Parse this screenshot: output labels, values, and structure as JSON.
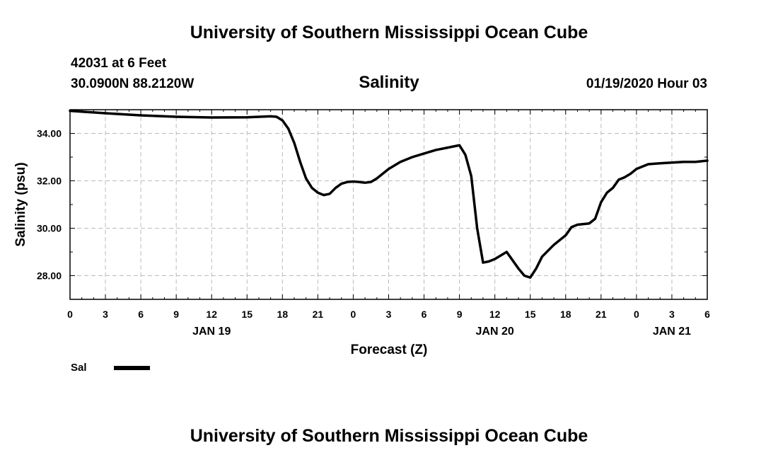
{
  "header": {
    "title": "University of Southern Mississippi Ocean Cube",
    "station": "42031 at 6 Feet",
    "location": "30.0900N 88.2120W",
    "subtitle": "Salinity",
    "timestamp": "01/19/2020 Hour 03"
  },
  "footer": {
    "title": "University of Southern Mississippi Ocean Cube"
  },
  "legend": {
    "label": "Sal",
    "placement": "bottom-left"
  },
  "chart_data": {
    "type": "line",
    "title": "Salinity",
    "xlabel": "Forecast (Z)",
    "ylabel": "Salinity (psu)",
    "x_unit": "hours since 01/19/2020 00Z",
    "xlim": [
      0,
      54
    ],
    "ylim": [
      27.0,
      35.0
    ],
    "x_ticks": [
      0,
      3,
      6,
      9,
      12,
      15,
      18,
      21,
      24,
      27,
      30,
      33,
      36,
      39,
      42,
      45,
      48,
      51,
      54
    ],
    "x_tick_labels": [
      "0",
      "3",
      "6",
      "9",
      "12",
      "15",
      "18",
      "21",
      "0",
      "3",
      "6",
      "9",
      "12",
      "15",
      "18",
      "21",
      "0",
      "3",
      "6"
    ],
    "date_labels": [
      {
        "x": 12,
        "text": "JAN 19"
      },
      {
        "x": 36,
        "text": "JAN 20"
      },
      {
        "x": 51,
        "text": "JAN 21"
      }
    ],
    "y_ticks": [
      28.0,
      30.0,
      32.0,
      34.0
    ],
    "y_tick_labels": [
      "28.00",
      "30.00",
      "32.00",
      "34.00"
    ],
    "grid": true,
    "line_color": "#000000",
    "series": [
      {
        "name": "Sal",
        "x": [
          0,
          3,
          6,
          9,
          12,
          15,
          17,
          17.5,
          18,
          18.5,
          19,
          19.5,
          20,
          20.5,
          21,
          21.5,
          22,
          22.5,
          23,
          23.5,
          24,
          24.5,
          25,
          25.5,
          26,
          27,
          28,
          29,
          30,
          31,
          32,
          33,
          33.5,
          34,
          34.5,
          35,
          35.5,
          36,
          37,
          38,
          38.5,
          39,
          39.5,
          40,
          40.5,
          41,
          42,
          42.5,
          43,
          44,
          44.5,
          45,
          45.5,
          46,
          46.5,
          47,
          47.5,
          48,
          49,
          50,
          51,
          52,
          53,
          54
        ],
        "y": [
          34.95,
          34.85,
          34.76,
          34.7,
          34.67,
          34.68,
          34.72,
          34.7,
          34.55,
          34.2,
          33.6,
          32.8,
          32.1,
          31.7,
          31.5,
          31.4,
          31.45,
          31.7,
          31.88,
          31.95,
          31.97,
          31.95,
          31.92,
          31.95,
          32.1,
          32.5,
          32.8,
          33.0,
          33.15,
          33.3,
          33.4,
          33.5,
          33.1,
          32.2,
          30.0,
          28.55,
          28.6,
          28.7,
          29.0,
          28.3,
          28.0,
          27.92,
          28.3,
          28.8,
          29.05,
          29.3,
          29.7,
          30.05,
          30.15,
          30.2,
          30.4,
          31.1,
          31.5,
          31.7,
          32.05,
          32.15,
          32.3,
          32.5,
          32.7,
          32.74,
          32.77,
          32.8,
          32.8,
          32.85
        ]
      }
    ]
  }
}
